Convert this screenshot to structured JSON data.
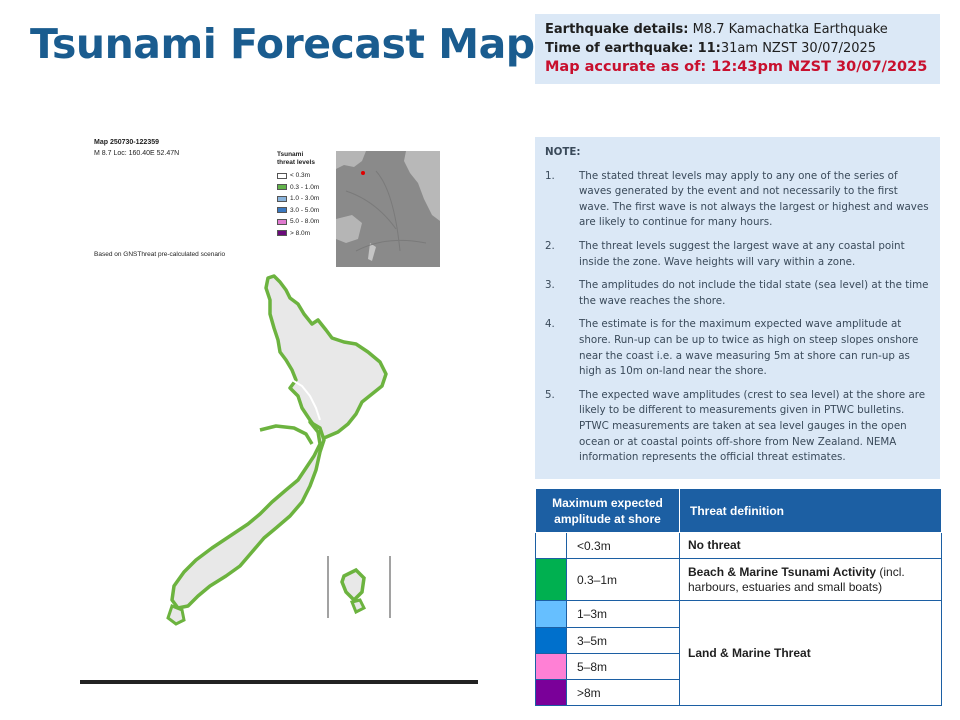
{
  "title": "Tsunami Forecast Map",
  "details": {
    "eq_label": "Earthquake details:",
    "eq_value": "M8.7 Kamachatka Earthquake",
    "time_label": "Time of earthquake:",
    "time_hour": "11:",
    "time_rest": "31am NZST 30/07/2025",
    "accurate_label": "Map accurate as of:",
    "accurate_value": "12:43pm NZST 30/07/2025"
  },
  "note": {
    "heading": "NOTE:",
    "items": [
      {
        "num": "1.",
        "text": "The stated threat levels may apply to any one of the series of waves generated by the event and not necessarily to the first wave. The first wave is not always the largest or highest and waves are likely to continue for many hours."
      },
      {
        "num": "2.",
        "text": "The threat levels suggest the largest wave at any coastal point inside the zone. Wave heights will vary within a zone."
      },
      {
        "num": "3.",
        "text": "The amplitudes do not include the tidal state (sea level) at the time the wave reaches the shore."
      },
      {
        "num": "4.",
        "text": "The estimate is for the maximum expected wave amplitude at shore. Run-up can be up to twice as high on steep slopes onshore near the coast i.e. a wave measuring 5m at shore can run-up as high as 10m on-land near the shore."
      },
      {
        "num": "5.",
        "text": "The expected wave amplitudes (crest to sea level) at the shore are likely to be different to measurements given in PTWC bulletins. PTWC measurements are taken at sea level gauges in the open ocean or at coastal points off-shore from New Zealand. NEMA information represents the official threat estimates."
      }
    ]
  },
  "threat_table": {
    "headers": [
      "Maximum expected amplitude at shore",
      "Threat definition"
    ],
    "rows": [
      {
        "color": "#ffffff",
        "range": "<0.3m",
        "definition_bold": "No threat",
        "definition_rest": ""
      },
      {
        "color": "#00b050",
        "range": "0.3–1m",
        "definition_bold": "Beach & Marine Tsunami Activity",
        "definition_rest": " (incl. harbours, estuaries and small boats)"
      },
      {
        "color": "#66bfff",
        "range": "1–3m",
        "definition_bold": "Land & Marine Threat",
        "definition_rest": ""
      },
      {
        "color": "#0070cc",
        "range": "3–5m"
      },
      {
        "color": "#ff80d5",
        "range": "5–8m"
      },
      {
        "color": "#7a0099",
        "range": ">8m"
      }
    ]
  },
  "map": {
    "map_id": "Map 250730-122359",
    "loc": "M 8.7 Loc: 160.40E 52.47N",
    "basis": "Based on GNSThreat pre-calculated scenario",
    "legend_title_1": "Tsunami",
    "legend_title_2": "threat levels",
    "legend": [
      {
        "label": "< 0.3m",
        "color": "#ffffff"
      },
      {
        "label": "0.3 - 1.0m",
        "color": "#62b34a"
      },
      {
        "label": "1.0 - 3.0m",
        "color": "#8ab4dc"
      },
      {
        "label": "3.0 - 5.0m",
        "color": "#3a78c0"
      },
      {
        "label": "5.0 - 8.0m",
        "color": "#e07ad0"
      },
      {
        "label": "> 8.0m",
        "color": "#6a0a7a"
      }
    ]
  },
  "colors": {
    "title": "#1a5c8f",
    "accurate": "#c8102e",
    "panel_bg": "#dbe8f6",
    "table_header": "#1c5fa3",
    "coast_green": "#6cb33f",
    "land": "#e8e8e8"
  }
}
